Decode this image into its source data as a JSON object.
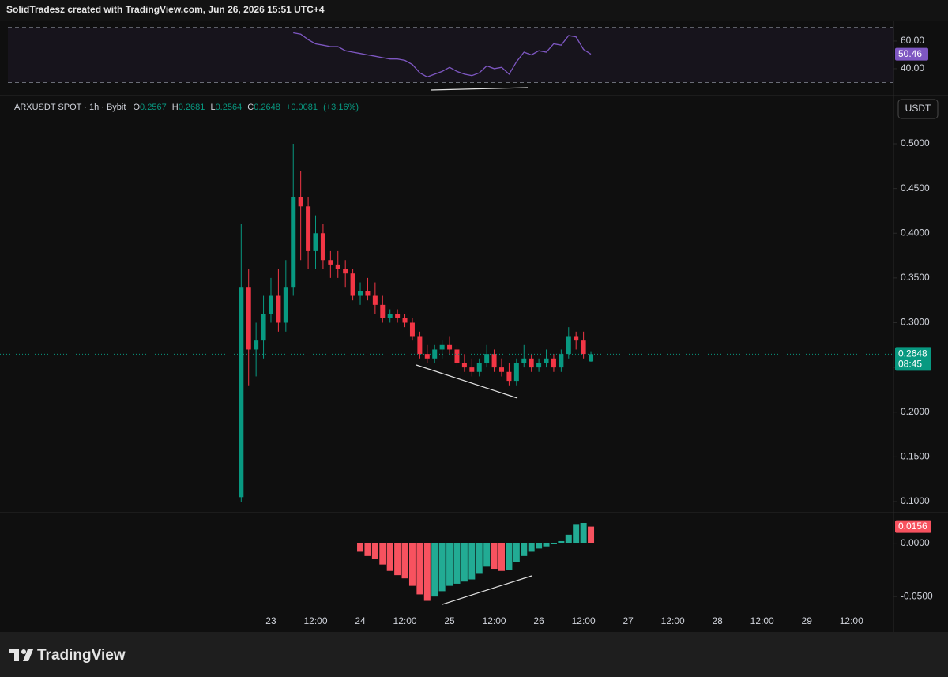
{
  "watermark": "SolidTradesz created with TradingView.com, Jun 26, 2026 15:51 UTC+4",
  "header": {
    "symbol": "ARXUSDT SPOT · 1h · Bybit",
    "ohlc_labels": [
      "O",
      "H",
      "L",
      "C"
    ],
    "change": "+0.0081",
    "change_pct": "(+3.16%)",
    "currency": "USDT",
    "countdown": "08:45"
  },
  "footer": {
    "brand": "TradingView"
  },
  "chart_data": [
    {
      "type": "candlestick",
      "categories": [
        null,
        null,
        null,
        null,
        "23",
        null,
        null,
        null,
        null,
        null,
        "12:00",
        null,
        null,
        null,
        null,
        null,
        "24",
        null,
        null,
        null,
        null,
        null,
        "12:00",
        null,
        null,
        null,
        null,
        null,
        "25",
        null,
        null,
        null,
        null,
        null,
        "12:00",
        null,
        null,
        null,
        null,
        null,
        "26",
        null,
        null,
        null,
        null,
        null,
        "12:00",
        null,
        null,
        null,
        null,
        null,
        "27",
        null,
        null,
        null,
        null,
        null,
        "12:00",
        null,
        null,
        null,
        null,
        null,
        "28",
        null,
        null,
        null,
        null,
        null,
        "12:00",
        null,
        null,
        null,
        null,
        null,
        "29",
        null,
        null,
        null,
        null,
        null,
        "12:00"
      ],
      "open": [
        0.105,
        0.34,
        0.27,
        0.28,
        0.31,
        0.33,
        0.3,
        0.34,
        0.44,
        0.43,
        0.38,
        0.4,
        0.37,
        0.365,
        0.36,
        0.355,
        0.33,
        0.335,
        0.33,
        0.32,
        0.305,
        0.31,
        0.305,
        0.3,
        0.285,
        0.265,
        0.26,
        0.27,
        0.275,
        0.27,
        0.255,
        0.25,
        0.245,
        0.255,
        0.265,
        0.25,
        0.245,
        0.235,
        0.255,
        0.26,
        0.25,
        0.255,
        0.26,
        0.25,
        0.265,
        0.285,
        0.28,
        0.2567,
        null,
        null,
        null,
        null,
        null,
        null,
        null,
        null,
        null,
        null,
        null,
        null,
        null,
        null,
        null,
        null,
        null,
        null,
        null,
        null,
        null,
        null,
        null,
        null,
        null,
        null,
        null,
        null,
        null,
        null,
        null,
        null,
        null,
        null,
        null
      ],
      "high": [
        0.41,
        0.36,
        0.3,
        0.33,
        0.35,
        0.36,
        0.37,
        0.5,
        0.47,
        0.44,
        0.42,
        0.41,
        0.38,
        0.38,
        0.37,
        0.36,
        0.345,
        0.35,
        0.345,
        0.33,
        0.315,
        0.315,
        0.31,
        0.305,
        0.29,
        0.275,
        0.275,
        0.28,
        0.285,
        0.275,
        0.265,
        0.26,
        0.26,
        0.275,
        0.27,
        0.26,
        0.255,
        0.26,
        0.275,
        0.265,
        0.26,
        0.27,
        0.265,
        0.27,
        0.295,
        0.29,
        0.29,
        0.2681,
        null,
        null,
        null,
        null,
        null,
        null,
        null,
        null,
        null,
        null,
        null,
        null,
        null,
        null,
        null,
        null,
        null,
        null,
        null,
        null,
        null,
        null,
        null,
        null,
        null,
        null,
        null,
        null,
        null,
        null,
        null,
        null,
        null,
        null,
        null
      ],
      "low": [
        0.1,
        0.23,
        0.24,
        0.26,
        0.3,
        0.29,
        0.29,
        0.33,
        0.37,
        0.36,
        0.36,
        0.36,
        0.35,
        0.35,
        0.34,
        0.325,
        0.32,
        0.325,
        0.31,
        0.3,
        0.3,
        0.3,
        0.295,
        0.28,
        0.26,
        0.255,
        0.255,
        0.26,
        0.265,
        0.25,
        0.245,
        0.24,
        0.24,
        0.25,
        0.245,
        0.24,
        0.23,
        0.23,
        0.25,
        0.245,
        0.245,
        0.25,
        0.245,
        0.245,
        0.26,
        0.27,
        0.26,
        0.2564,
        null,
        null,
        null,
        null,
        null,
        null,
        null,
        null,
        null,
        null,
        null,
        null,
        null,
        null,
        null,
        null,
        null,
        null,
        null,
        null,
        null,
        null,
        null,
        null,
        null,
        null,
        null,
        null,
        null,
        null,
        null,
        null,
        null,
        null,
        null
      ],
      "close": [
        0.34,
        0.27,
        0.28,
        0.31,
        0.33,
        0.3,
        0.34,
        0.44,
        0.43,
        0.38,
        0.4,
        0.37,
        0.365,
        0.36,
        0.355,
        0.33,
        0.335,
        0.33,
        0.32,
        0.305,
        0.31,
        0.305,
        0.3,
        0.285,
        0.265,
        0.26,
        0.27,
        0.275,
        0.27,
        0.255,
        0.25,
        0.245,
        0.255,
        0.265,
        0.25,
        0.245,
        0.235,
        0.255,
        0.26,
        0.25,
        0.255,
        0.26,
        0.25,
        0.265,
        0.285,
        0.28,
        0.265,
        0.2648,
        null,
        null,
        null,
        null,
        null,
        null,
        null,
        null,
        null,
        null,
        null,
        null,
        null,
        null,
        null,
        null,
        null,
        null,
        null,
        null,
        null,
        null,
        null,
        null,
        null,
        null,
        null,
        null,
        null,
        null,
        null,
        null,
        null,
        null,
        null
      ],
      "up_color": "#089981",
      "down_color": "#f23645",
      "ylim": [
        0.0885,
        0.553
      ],
      "yticks": [
        {
          "value": 0.1,
          "label": "0.1000"
        },
        {
          "value": 0.15,
          "label": "0.1500"
        },
        {
          "value": 0.2,
          "label": "0.2000"
        },
        {
          "value": 0.25,
          "label": "0.2500"
        },
        {
          "value": 0.3,
          "label": "0.3000"
        },
        {
          "value": 0.35,
          "label": "0.3500"
        },
        {
          "value": 0.4,
          "label": "0.4000"
        },
        {
          "value": 0.45,
          "label": "0.4500"
        },
        {
          "value": 0.5,
          "label": "0.5000"
        }
      ]
    },
    {
      "type": "line",
      "values": [
        null,
        null,
        null,
        null,
        null,
        null,
        null,
        66,
        65,
        61,
        58,
        57,
        56,
        56,
        53,
        52,
        51,
        50,
        49,
        48,
        47,
        47,
        46,
        43,
        37,
        34,
        36,
        38,
        41,
        38,
        36,
        35,
        37,
        42,
        40,
        41,
        36,
        45,
        52,
        50,
        53,
        52,
        58,
        57,
        64,
        63,
        54,
        50.46,
        null,
        null,
        null,
        null,
        null,
        null,
        null,
        null,
        null,
        null,
        null,
        null,
        null,
        null,
        null,
        null,
        null,
        null,
        null,
        null,
        null,
        null,
        null,
        null,
        null,
        null,
        null,
        null,
        null,
        null,
        null,
        null,
        null,
        null,
        null
      ],
      "color": "#7e57c2",
      "levels": [
        70,
        50,
        30
      ],
      "ylim": [
        21.1,
        73.7
      ],
      "yticks": [
        {
          "value": 60,
          "label": "60.00"
        },
        {
          "value": 40,
          "label": "40.00"
        }
      ]
    },
    {
      "type": "bar",
      "values": [
        null,
        null,
        null,
        null,
        null,
        null,
        null,
        null,
        null,
        null,
        null,
        null,
        null,
        null,
        null,
        null,
        -0.008,
        -0.012,
        -0.015,
        -0.02,
        -0.026,
        -0.03,
        -0.033,
        -0.04,
        -0.048,
        -0.054,
        -0.05,
        -0.045,
        -0.04,
        -0.038,
        -0.036,
        -0.034,
        -0.028,
        -0.022,
        -0.024,
        -0.026,
        -0.025,
        -0.018,
        -0.012,
        -0.008,
        -0.005,
        -0.003,
        -0.001,
        0.002,
        0.008,
        0.018,
        0.019,
        0.0156,
        null,
        null,
        null,
        null,
        null,
        null,
        null,
        null,
        null,
        null,
        null,
        null,
        null,
        null,
        null,
        null,
        null,
        null,
        null,
        null,
        null,
        null,
        null,
        null,
        null,
        null,
        null,
        null,
        null,
        null,
        null,
        null,
        null,
        null,
        null
      ],
      "up_color": "#22ab94",
      "down_color": "#f7525f",
      "ylim": [
        -0.0625,
        0.0279
      ],
      "yticks": [
        {
          "value": 0,
          "label": "0.0000"
        },
        {
          "value": -0.05,
          "label": "-0.0500"
        }
      ]
    }
  ]
}
